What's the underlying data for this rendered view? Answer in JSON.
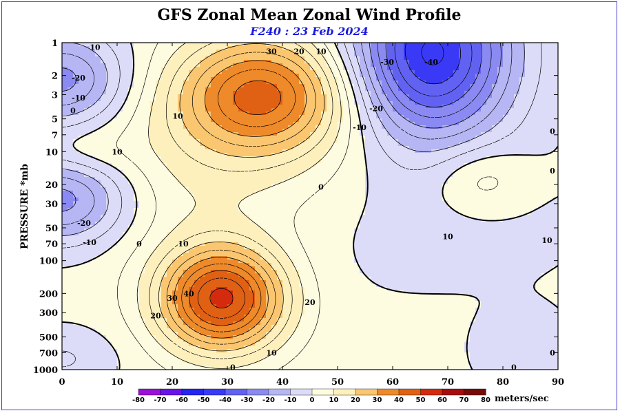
{
  "chart_data": {
    "type": "contour",
    "title": "GFS Zonal Mean Zonal Wind Profile",
    "subtitle": "F240 : 23 Feb 2024",
    "ylabel": "PRESSURE *mb",
    "xlim": [
      0,
      90
    ],
    "y_scale": "log",
    "ylim": [
      1000,
      1
    ],
    "x_ticks": [
      0,
      10,
      20,
      30,
      40,
      50,
      60,
      70,
      80,
      90
    ],
    "y_ticks": [
      1,
      2,
      3,
      5,
      7,
      10,
      20,
      30,
      50,
      70,
      100,
      200,
      300,
      500,
      700,
      1000
    ],
    "units": "meters/sec",
    "colorbar": {
      "ticks": [
        -80,
        -70,
        -60,
        -50,
        -40,
        -30,
        -20,
        -10,
        0,
        10,
        20,
        30,
        40,
        50,
        60,
        70,
        80
      ],
      "colors": [
        "#9a10d8",
        "#6a14e8",
        "#2424f4",
        "#3a3af6",
        "#6262f2",
        "#8a8af2",
        "#b6b6f4",
        "#dcdcf8",
        "#fdfbe0",
        "#fef0bc",
        "#fbc670",
        "#ee8a2a",
        "#e06014",
        "#d42a0e",
        "#a80c0c",
        "#7a0a06",
        "#8a7030"
      ]
    },
    "features": [
      {
        "label": "-40",
        "lat": 67,
        "p": 1.5
      },
      {
        "label": "-30",
        "lat": 59,
        "p": 1.5
      },
      {
        "label": "-20",
        "lat": 57,
        "p": 4
      },
      {
        "label": "-10",
        "lat": 54,
        "p": 6
      },
      {
        "label": "-20",
        "lat": 3,
        "p": 2.1
      },
      {
        "label": "-10",
        "lat": 3,
        "p": 3.2
      },
      {
        "label": "-20",
        "lat": 4,
        "p": 45
      },
      {
        "label": "-10",
        "lat": 5,
        "p": 68
      },
      {
        "label": "30",
        "lat": 38,
        "p": 1.2
      },
      {
        "label": "20",
        "lat": 43,
        "p": 1.2
      },
      {
        "label": "10",
        "lat": 47,
        "p": 1.2
      },
      {
        "label": "40",
        "lat": 23,
        "p": 200
      },
      {
        "label": "30",
        "lat": 20,
        "p": 220
      },
      {
        "label": "20",
        "lat": 17,
        "p": 320
      },
      {
        "label": "20",
        "lat": 45,
        "p": 240
      },
      {
        "label": "10",
        "lat": 22,
        "p": 70
      },
      {
        "label": "10",
        "lat": 38,
        "p": 700
      },
      {
        "label": "10",
        "lat": 70,
        "p": 60
      },
      {
        "label": "10",
        "lat": 88,
        "p": 65
      },
      {
        "label": "10",
        "lat": 10,
        "p": 10
      },
      {
        "label": "10",
        "lat": 21,
        "p": 4.7
      },
      {
        "label": "0",
        "lat": 2,
        "p": 4.2
      },
      {
        "label": "0",
        "lat": 14,
        "p": 70
      },
      {
        "label": "0",
        "lat": 47,
        "p": 21
      },
      {
        "label": "0",
        "lat": 89,
        "p": 6.5
      },
      {
        "label": "0",
        "lat": 89,
        "p": 15
      },
      {
        "label": "0",
        "lat": 82,
        "p": 950
      },
      {
        "label": "0",
        "lat": 31,
        "p": 950
      },
      {
        "label": "0",
        "lat": 89,
        "p": 700
      },
      {
        "label": "10",
        "lat": 6,
        "p": 1.1
      }
    ]
  }
}
